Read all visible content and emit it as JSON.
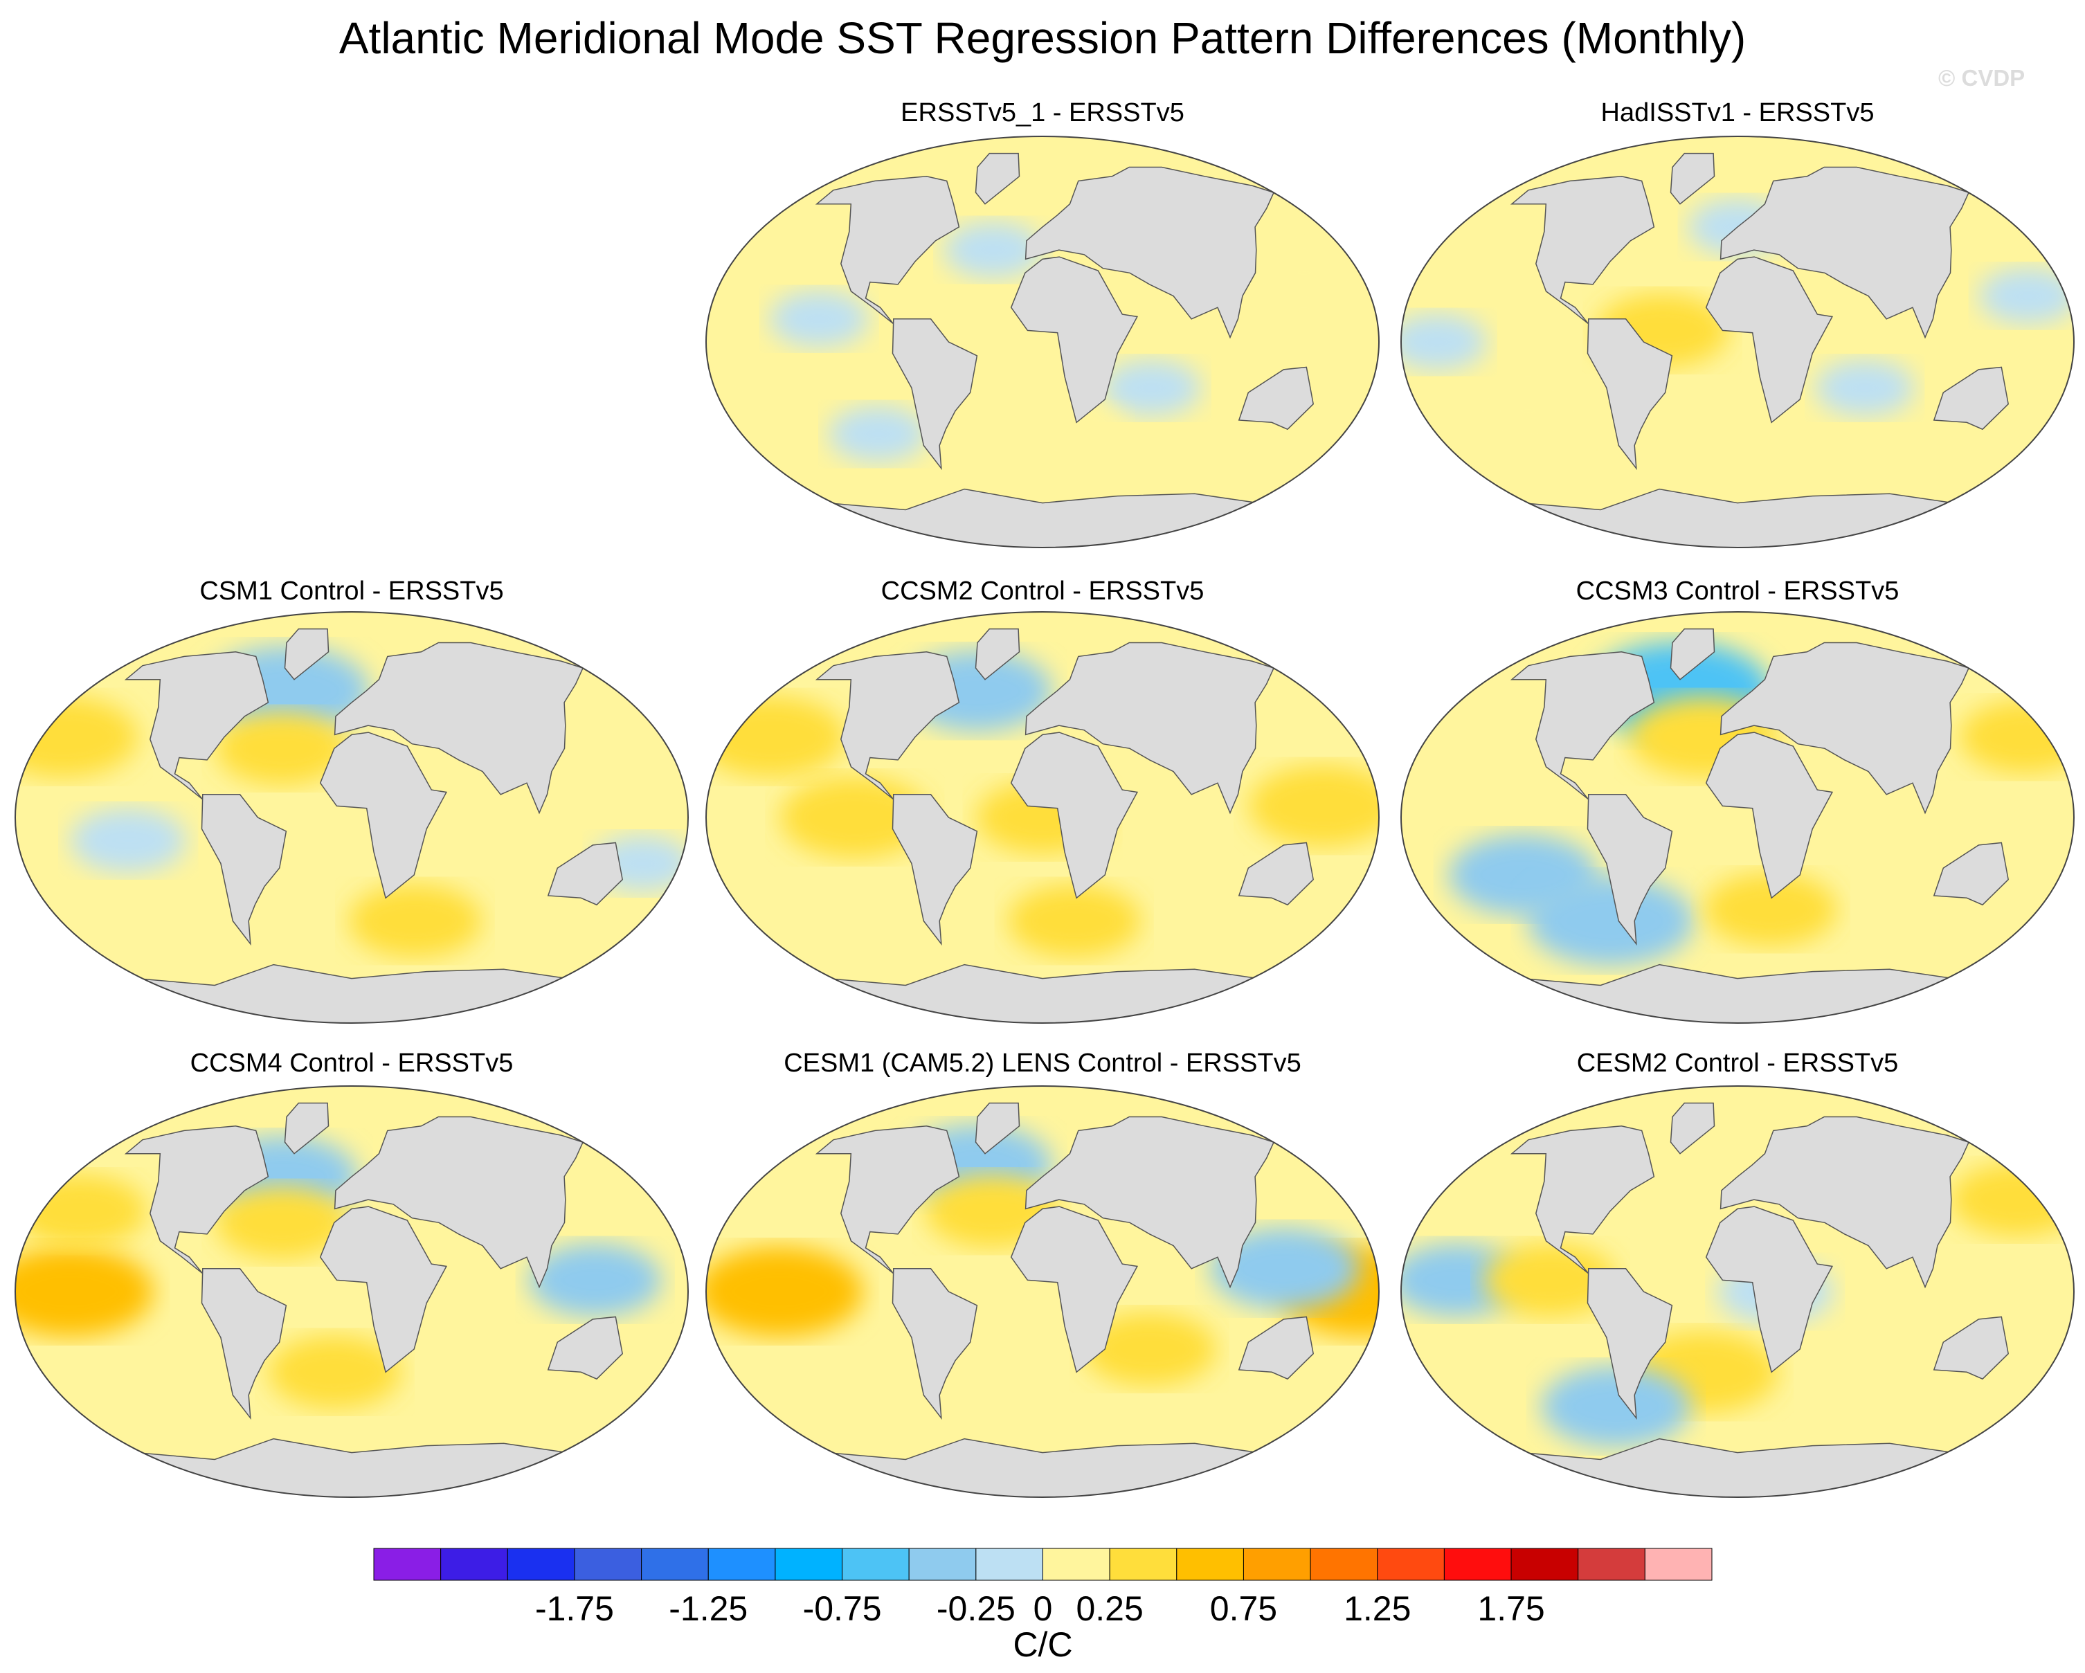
{
  "title": "Atlantic Meridional Mode SST Regression Pattern Differences (Monthly)",
  "watermark": "© CVDP",
  "colors": {
    "land": "#dcdcdc",
    "coast": "#555555",
    "ocean_default": "#fff59d"
  },
  "chart_data": {
    "type": "heatmap",
    "projection": "Robinson (global map panels)",
    "variable": "SST regression difference",
    "units": "C/C",
    "panels": [
      {
        "id": "ersstv5_1",
        "title": "ERSSTv5_1 - ERSSTv5",
        "row": 0,
        "col": 1,
        "features": [
          {
            "lon": -150,
            "lat": -15,
            "value": 0.1
          },
          {
            "lon": -120,
            "lat": 10,
            "value": -0.1
          },
          {
            "lon": -30,
            "lat": 40,
            "value": -0.1
          },
          {
            "lon": 60,
            "lat": -20,
            "value": -0.1
          },
          {
            "lon": 150,
            "lat": 30,
            "value": 0.2
          },
          {
            "lon": -100,
            "lat": -40,
            "value": -0.1
          },
          {
            "lon": 20,
            "lat": -40,
            "value": 0.1
          }
        ]
      },
      {
        "id": "hadisstv1",
        "title": "HadISSTv1 - ERSSTv5",
        "row": 0,
        "col": 2,
        "features": [
          {
            "lon": -160,
            "lat": 0,
            "value": -0.1
          },
          {
            "lon": -40,
            "lat": 5,
            "value": 0.3
          },
          {
            "lon": 0,
            "lat": 50,
            "value": -0.1
          },
          {
            "lon": 70,
            "lat": -20,
            "value": -0.1
          },
          {
            "lon": -120,
            "lat": -30,
            "value": 0.2
          },
          {
            "lon": 160,
            "lat": 20,
            "value": -0.1
          }
        ]
      },
      {
        "id": "csm1",
        "title": "CSM1 Control - ERSSTv5",
        "row": 1,
        "col": 0,
        "features": [
          {
            "lon": -170,
            "lat": 35,
            "value": 0.4
          },
          {
            "lon": -45,
            "lat": 55,
            "value": -0.5
          },
          {
            "lon": -40,
            "lat": 30,
            "value": 0.3
          },
          {
            "lon": -120,
            "lat": -10,
            "value": -0.2
          },
          {
            "lon": 40,
            "lat": -45,
            "value": 0.3
          },
          {
            "lon": 160,
            "lat": -20,
            "value": -0.1
          }
        ]
      },
      {
        "id": "ccsm2",
        "title": "CCSM2 Control - ERSSTv5",
        "row": 1,
        "col": 1,
        "features": [
          {
            "lon": -160,
            "lat": 35,
            "value": 0.4
          },
          {
            "lon": -100,
            "lat": 0,
            "value": 0.4
          },
          {
            "lon": -45,
            "lat": 55,
            "value": -0.4
          },
          {
            "lon": 0,
            "lat": 0,
            "value": 0.3
          },
          {
            "lon": 150,
            "lat": 5,
            "value": 0.4
          },
          {
            "lon": 20,
            "lat": -45,
            "value": 0.3
          }
        ]
      },
      {
        "id": "ccsm3",
        "title": "CCSM3 Control - ERSSTv5",
        "row": 1,
        "col": 2,
        "features": [
          {
            "lon": -40,
            "lat": 55,
            "value": -0.6
          },
          {
            "lon": -20,
            "lat": 35,
            "value": 0.4
          },
          {
            "lon": -120,
            "lat": -25,
            "value": -0.4
          },
          {
            "lon": -80,
            "lat": -45,
            "value": -0.5
          },
          {
            "lon": 20,
            "lat": -40,
            "value": 0.3
          },
          {
            "lon": 170,
            "lat": 35,
            "value": 0.3
          }
        ]
      },
      {
        "id": "ccsm4",
        "title": "CCSM4 Control - ERSSTv5",
        "row": 2,
        "col": 0,
        "features": [
          {
            "lon": -150,
            "lat": 0,
            "value": 0.5
          },
          {
            "lon": -45,
            "lat": 50,
            "value": -0.4
          },
          {
            "lon": -40,
            "lat": 30,
            "value": 0.3
          },
          {
            "lon": 130,
            "lat": 5,
            "value": -0.3
          },
          {
            "lon": -10,
            "lat": -35,
            "value": 0.3
          },
          {
            "lon": -160,
            "lat": 35,
            "value": 0.3
          }
        ]
      },
      {
        "id": "cesm1_lens",
        "title": "CESM1 (CAM5.2) LENS Control - ERSSTv5",
        "row": 2,
        "col": 1,
        "features": [
          {
            "lon": -140,
            "lat": 0,
            "value": 0.5
          },
          {
            "lon": 170,
            "lat": 0,
            "value": 0.5
          },
          {
            "lon": -45,
            "lat": 55,
            "value": -0.4
          },
          {
            "lon": 130,
            "lat": 10,
            "value": -0.4
          },
          {
            "lon": -30,
            "lat": 35,
            "value": 0.3
          },
          {
            "lon": 60,
            "lat": -25,
            "value": 0.3
          }
        ]
      },
      {
        "id": "cesm2",
        "title": "CESM2 Control - ERSSTv5",
        "row": 2,
        "col": 2,
        "features": [
          {
            "lon": -150,
            "lat": 5,
            "value": -0.3
          },
          {
            "lon": -100,
            "lat": 5,
            "value": 0.3
          },
          {
            "lon": -20,
            "lat": -35,
            "value": 0.4
          },
          {
            "lon": -80,
            "lat": -50,
            "value": -0.4
          },
          {
            "lon": 20,
            "lat": 0,
            "value": -0.2
          },
          {
            "lon": 170,
            "lat": 40,
            "value": 0.3
          }
        ]
      }
    ],
    "colorbar": {
      "bin_colors": [
        "#8a1ee6",
        "#3d1de6",
        "#1a30f0",
        "#3b5fe0",
        "#2f70e8",
        "#1e90ff",
        "#00b2ff",
        "#4dc3f5",
        "#8fcbee",
        "#bde0f3",
        "#fff59d",
        "#ffde3b",
        "#ffbf00",
        "#ff9f00",
        "#ff7400",
        "#ff4a10",
        "#ff0d0d",
        "#c80000",
        "#d43c3c",
        "#ffb3b3"
      ],
      "levels": [
        -2.25,
        -2.0,
        -1.75,
        -1.5,
        -1.25,
        -1.0,
        -0.75,
        -0.5,
        -0.25,
        0,
        0.25,
        0.5,
        0.75,
        1.0,
        1.25,
        1.5,
        1.75,
        2.0,
        2.25
      ],
      "tick_labels": [
        "-1.75",
        "-1.25",
        "-0.75",
        "-0.25",
        "0",
        "0.25",
        "0.75",
        "1.25",
        "1.75"
      ],
      "units_label": "C/C"
    }
  }
}
